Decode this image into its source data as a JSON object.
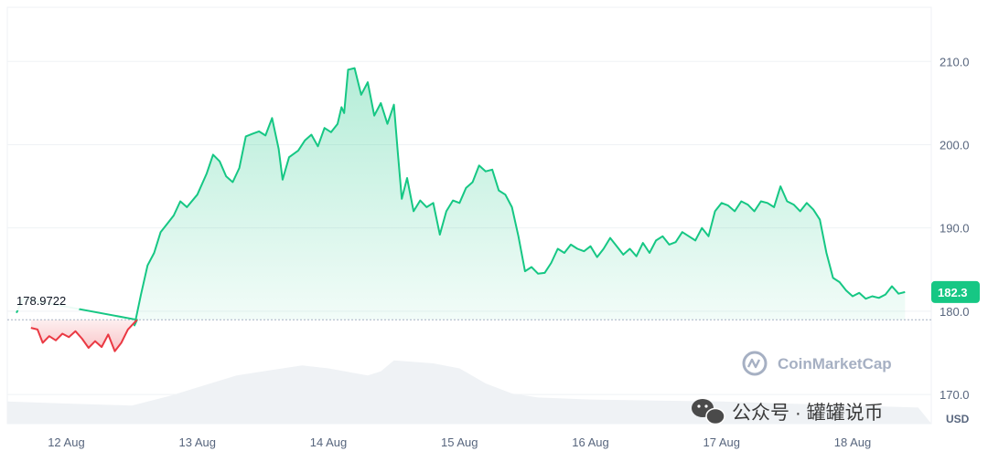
{
  "chart_data": {
    "type": "area",
    "currency": "USD",
    "baseline": 178.9722,
    "baseline_label": "178.9722",
    "last_value": 182.3,
    "last_label": "182.3",
    "ylim": [
      166.5,
      216.5
    ],
    "yticks": [
      170.0,
      180.0,
      190.0,
      200.0,
      210.0
    ],
    "ytick_labels": [
      "170.0",
      "180.0",
      "190.0",
      "200.0",
      "210.0"
    ],
    "x_range": [
      11.55,
      18.6
    ],
    "xticks": [
      12,
      13,
      14,
      15,
      16,
      17,
      18
    ],
    "xtick_labels": [
      "12 Aug",
      "13 Aug",
      "14 Aug",
      "15 Aug",
      "16 Aug",
      "17 Aug",
      "18 Aug"
    ],
    "price_points": [
      [
        11.62,
        179.8
      ],
      [
        11.67,
        181.5
      ],
      [
        11.73,
        178.0
      ],
      [
        11.78,
        177.8
      ],
      [
        11.82,
        176.2
      ],
      [
        11.87,
        177.0
      ],
      [
        11.92,
        176.5
      ],
      [
        11.97,
        177.3
      ],
      [
        12.02,
        176.9
      ],
      [
        12.07,
        177.6
      ],
      [
        12.12,
        176.7
      ],
      [
        12.17,
        175.6
      ],
      [
        12.22,
        176.4
      ],
      [
        12.27,
        175.7
      ],
      [
        12.32,
        177.2
      ],
      [
        12.37,
        175.2
      ],
      [
        12.42,
        176.2
      ],
      [
        12.47,
        177.8
      ],
      [
        12.52,
        178.3
      ],
      [
        12.57,
        182.0
      ],
      [
        12.62,
        185.5
      ],
      [
        12.67,
        187.0
      ],
      [
        12.72,
        189.5
      ],
      [
        12.77,
        190.5
      ],
      [
        12.82,
        191.5
      ],
      [
        12.87,
        193.2
      ],
      [
        12.92,
        192.5
      ],
      [
        13.0,
        194.0
      ],
      [
        13.07,
        196.5
      ],
      [
        13.12,
        198.8
      ],
      [
        13.17,
        198.0
      ],
      [
        13.22,
        196.2
      ],
      [
        13.27,
        195.5
      ],
      [
        13.32,
        197.2
      ],
      [
        13.37,
        201.0
      ],
      [
        13.42,
        201.3
      ],
      [
        13.47,
        201.6
      ],
      [
        13.52,
        201.1
      ],
      [
        13.57,
        203.2
      ],
      [
        13.62,
        199.5
      ],
      [
        13.65,
        195.8
      ],
      [
        13.7,
        198.5
      ],
      [
        13.77,
        199.3
      ],
      [
        13.82,
        200.5
      ],
      [
        13.87,
        201.2
      ],
      [
        13.92,
        199.8
      ],
      [
        13.97,
        202.0
      ],
      [
        14.02,
        201.5
      ],
      [
        14.07,
        202.5
      ],
      [
        14.1,
        204.5
      ],
      [
        14.12,
        203.8
      ],
      [
        14.15,
        209.0
      ],
      [
        14.2,
        209.2
      ],
      [
        14.25,
        206.0
      ],
      [
        14.3,
        207.5
      ],
      [
        14.35,
        203.5
      ],
      [
        14.4,
        205.0
      ],
      [
        14.45,
        202.5
      ],
      [
        14.5,
        204.8
      ],
      [
        14.53,
        199.0
      ],
      [
        14.56,
        193.5
      ],
      [
        14.6,
        196.0
      ],
      [
        14.65,
        192.0
      ],
      [
        14.7,
        193.3
      ],
      [
        14.75,
        192.5
      ],
      [
        14.8,
        193.0
      ],
      [
        14.85,
        189.2
      ],
      [
        14.9,
        192.0
      ],
      [
        14.95,
        193.3
      ],
      [
        15.0,
        193.0
      ],
      [
        15.05,
        194.8
      ],
      [
        15.1,
        195.5
      ],
      [
        15.15,
        197.5
      ],
      [
        15.2,
        196.8
      ],
      [
        15.25,
        197.0
      ],
      [
        15.3,
        194.5
      ],
      [
        15.35,
        194.0
      ],
      [
        15.4,
        192.5
      ],
      [
        15.45,
        189.0
      ],
      [
        15.5,
        184.8
      ],
      [
        15.55,
        185.3
      ],
      [
        15.6,
        184.5
      ],
      [
        15.65,
        184.6
      ],
      [
        15.7,
        185.8
      ],
      [
        15.75,
        187.5
      ],
      [
        15.8,
        187.0
      ],
      [
        15.85,
        188.0
      ],
      [
        15.9,
        187.5
      ],
      [
        15.95,
        187.2
      ],
      [
        16.0,
        187.8
      ],
      [
        16.05,
        186.5
      ],
      [
        16.1,
        187.5
      ],
      [
        16.15,
        188.8
      ],
      [
        16.2,
        187.8
      ],
      [
        16.25,
        186.8
      ],
      [
        16.3,
        187.5
      ],
      [
        16.35,
        186.6
      ],
      [
        16.4,
        188.2
      ],
      [
        16.45,
        187.0
      ],
      [
        16.5,
        188.5
      ],
      [
        16.55,
        189.0
      ],
      [
        16.6,
        188.0
      ],
      [
        16.65,
        188.3
      ],
      [
        16.7,
        189.5
      ],
      [
        16.75,
        189.0
      ],
      [
        16.8,
        188.5
      ],
      [
        16.85,
        190.0
      ],
      [
        16.9,
        189.0
      ],
      [
        16.95,
        192.0
      ],
      [
        17.0,
        193.0
      ],
      [
        17.05,
        192.7
      ],
      [
        17.1,
        192.0
      ],
      [
        17.15,
        193.2
      ],
      [
        17.2,
        192.8
      ],
      [
        17.25,
        192.0
      ],
      [
        17.3,
        193.2
      ],
      [
        17.35,
        193.0
      ],
      [
        17.4,
        192.5
      ],
      [
        17.45,
        195.0
      ],
      [
        17.5,
        193.2
      ],
      [
        17.55,
        192.8
      ],
      [
        17.6,
        192.0
      ],
      [
        17.65,
        193.0
      ],
      [
        17.7,
        192.2
      ],
      [
        17.75,
        191.0
      ],
      [
        17.8,
        187.0
      ],
      [
        17.85,
        184.0
      ],
      [
        17.9,
        183.5
      ],
      [
        17.95,
        182.5
      ],
      [
        18.0,
        181.8
      ],
      [
        18.05,
        182.2
      ],
      [
        18.1,
        181.5
      ],
      [
        18.15,
        181.8
      ],
      [
        18.2,
        181.6
      ],
      [
        18.25,
        182.0
      ],
      [
        18.3,
        183.0
      ],
      [
        18.35,
        182.1
      ],
      [
        18.4,
        182.3
      ]
    ],
    "volume_points": [
      [
        11.55,
        0.22
      ],
      [
        12.0,
        0.2
      ],
      [
        12.5,
        0.18
      ],
      [
        12.8,
        0.28
      ],
      [
        13.0,
        0.36
      ],
      [
        13.3,
        0.48
      ],
      [
        13.5,
        0.52
      ],
      [
        13.8,
        0.58
      ],
      [
        14.0,
        0.55
      ],
      [
        14.3,
        0.48
      ],
      [
        14.4,
        0.52
      ],
      [
        14.5,
        0.63
      ],
      [
        14.8,
        0.6
      ],
      [
        15.0,
        0.55
      ],
      [
        15.2,
        0.4
      ],
      [
        15.4,
        0.3
      ],
      [
        15.6,
        0.26
      ],
      [
        16.0,
        0.24
      ],
      [
        16.5,
        0.23
      ],
      [
        17.0,
        0.22
      ],
      [
        17.5,
        0.2
      ],
      [
        18.0,
        0.18
      ],
      [
        18.5,
        0.16
      ]
    ],
    "up_color": "#16c784",
    "down_color": "#ea3943",
    "volume_color": "#eff2f5"
  },
  "watermark": {
    "brand": "CoinMarketCap",
    "wechat": "公众号 · 罐罐说币"
  },
  "unit_label": "USD"
}
